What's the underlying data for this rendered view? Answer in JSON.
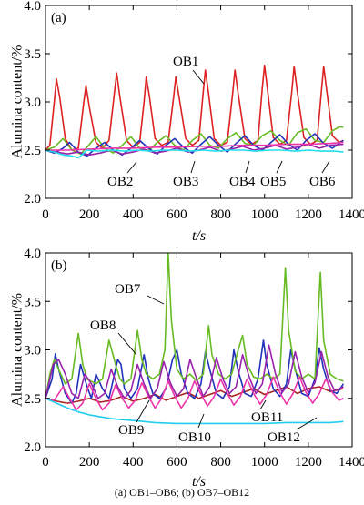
{
  "caption": "(a) OB1–OB6; (b) OB7–OB12",
  "chart_data": [
    {
      "type": "line",
      "panel_label": "(a)",
      "xlabel": "t/s",
      "ylabel": "Alumina content/%",
      "xlim": [
        0,
        1400
      ],
      "ylim": [
        2.0,
        4.0
      ],
      "xticks": [
        0,
        200,
        400,
        600,
        800,
        1000,
        1200,
        1400
      ],
      "yticks": [
        2.0,
        2.5,
        3.0,
        3.5,
        4.0
      ],
      "grid": false,
      "series": [
        {
          "name": "OB1",
          "color": "#dd2222",
          "x": [
            0,
            20,
            40,
            50,
            65,
            90,
            120,
            150,
            175,
            185,
            200,
            230,
            260,
            290,
            315,
            325,
            340,
            370,
            400,
            430,
            450,
            460,
            475,
            500,
            530,
            560,
            585,
            595,
            610,
            640,
            670,
            700,
            720,
            730,
            745,
            770,
            800,
            830,
            855,
            865,
            880,
            910,
            940,
            970,
            990,
            1000,
            1015,
            1040,
            1070,
            1100,
            1125,
            1135,
            1150,
            1180,
            1210,
            1240,
            1260,
            1270,
            1285,
            1310,
            1340,
            1360
          ],
          "y": [
            2.5,
            2.55,
            3.0,
            3.24,
            3.05,
            2.62,
            2.5,
            2.52,
            3.0,
            3.17,
            2.95,
            2.58,
            2.52,
            2.6,
            3.1,
            3.3,
            3.05,
            2.6,
            2.53,
            2.58,
            3.0,
            3.26,
            3.05,
            2.62,
            2.55,
            2.58,
            3.05,
            3.26,
            3.05,
            2.62,
            2.55,
            2.6,
            3.1,
            3.33,
            3.08,
            2.62,
            2.55,
            2.58,
            3.1,
            3.33,
            3.08,
            2.62,
            2.56,
            2.6,
            3.15,
            3.38,
            3.1,
            2.63,
            2.56,
            2.6,
            3.12,
            3.37,
            3.1,
            2.63,
            2.56,
            2.6,
            3.12,
            3.37,
            3.1,
            2.65,
            2.58,
            2.6
          ]
        },
        {
          "name": "OB2",
          "color": "#66bb22",
          "x": [
            0,
            40,
            80,
            120,
            160,
            190,
            230,
            270,
            310,
            350,
            390,
            430,
            470,
            510,
            550,
            590,
            630,
            670,
            710,
            750,
            790,
            830,
            870,
            910,
            950,
            990,
            1030,
            1070,
            1110,
            1150,
            1190,
            1230,
            1270,
            1310,
            1340,
            1360
          ],
          "y": [
            2.5,
            2.53,
            2.62,
            2.5,
            2.46,
            2.53,
            2.64,
            2.52,
            2.47,
            2.55,
            2.64,
            2.52,
            2.49,
            2.58,
            2.65,
            2.55,
            2.5,
            2.6,
            2.67,
            2.55,
            2.52,
            2.62,
            2.68,
            2.57,
            2.55,
            2.65,
            2.7,
            2.6,
            2.55,
            2.68,
            2.72,
            2.6,
            2.58,
            2.7,
            2.74,
            2.74
          ]
        },
        {
          "name": "OB3",
          "color": "#2233bb",
          "x": [
            0,
            40,
            80,
            110,
            150,
            190,
            230,
            270,
            310,
            350,
            390,
            430,
            470,
            510,
            550,
            590,
            630,
            670,
            710,
            750,
            790,
            830,
            870,
            910,
            950,
            990,
            1030,
            1070,
            1110,
            1150,
            1190,
            1230,
            1270,
            1310,
            1360
          ],
          "y": [
            2.5,
            2.47,
            2.52,
            2.58,
            2.48,
            2.44,
            2.52,
            2.58,
            2.5,
            2.45,
            2.52,
            2.6,
            2.52,
            2.46,
            2.55,
            2.62,
            2.53,
            2.47,
            2.56,
            2.64,
            2.55,
            2.48,
            2.57,
            2.65,
            2.55,
            2.5,
            2.58,
            2.66,
            2.56,
            2.5,
            2.6,
            2.67,
            2.57,
            2.52,
            2.6
          ]
        },
        {
          "name": "OB4",
          "color": "#9922aa",
          "x": [
            0,
            50,
            100,
            150,
            200,
            250,
            300,
            350,
            400,
            450,
            500,
            550,
            600,
            650,
            700,
            750,
            800,
            850,
            900,
            950,
            1000,
            1050,
            1100,
            1150,
            1200,
            1250,
            1300,
            1360
          ],
          "y": [
            2.5,
            2.48,
            2.46,
            2.48,
            2.45,
            2.47,
            2.5,
            2.46,
            2.48,
            2.51,
            2.47,
            2.49,
            2.52,
            2.48,
            2.5,
            2.53,
            2.49,
            2.51,
            2.54,
            2.5,
            2.52,
            2.55,
            2.51,
            2.53,
            2.56,
            2.52,
            2.55,
            2.56
          ]
        },
        {
          "name": "OB5",
          "color": "#ee33aa",
          "x": [
            0,
            100,
            200,
            300,
            400,
            500,
            600,
            700,
            800,
            900,
            1000,
            1100,
            1200,
            1300,
            1360
          ],
          "y": [
            2.5,
            2.5,
            2.51,
            2.52,
            2.52,
            2.53,
            2.53,
            2.54,
            2.54,
            2.55,
            2.55,
            2.56,
            2.56,
            2.57,
            2.58
          ]
        },
        {
          "name": "OB6",
          "color": "#22ddee",
          "x": [
            0,
            40,
            80,
            120,
            150,
            190,
            240,
            300,
            360,
            420,
            480,
            540,
            600,
            660,
            720,
            780,
            840,
            900,
            960,
            1020,
            1080,
            1140,
            1200,
            1260,
            1320,
            1360
          ],
          "y": [
            2.5,
            2.48,
            2.45,
            2.44,
            2.42,
            2.5,
            2.49,
            2.5,
            2.49,
            2.5,
            2.49,
            2.5,
            2.5,
            2.49,
            2.5,
            2.49,
            2.5,
            2.5,
            2.49,
            2.5,
            2.5,
            2.49,
            2.5,
            2.49,
            2.49,
            2.48
          ]
        }
      ],
      "annotations": [
        {
          "text": "OB1",
          "series": "OB1"
        },
        {
          "text": "OB2",
          "series": "OB2"
        },
        {
          "text": "OB3",
          "series": "OB3"
        },
        {
          "text": "OB4",
          "series": "OB4"
        },
        {
          "text": "OB5",
          "series": "OB5"
        },
        {
          "text": "OB6",
          "series": "OB6"
        }
      ]
    },
    {
      "type": "line",
      "panel_label": "(b)",
      "xlabel": "t/s",
      "ylabel": "Alumina content/%",
      "xlim": [
        0,
        1400
      ],
      "ylim": [
        2.0,
        4.0
      ],
      "xticks": [
        0,
        200,
        400,
        600,
        800,
        1000,
        1200,
        1400
      ],
      "yticks": [
        2.0,
        2.5,
        3.0,
        3.5,
        4.0
      ],
      "grid": false,
      "series": [
        {
          "name": "OB7",
          "color": "#aa2222",
          "x": [
            0,
            50,
            100,
            150,
            200,
            250,
            300,
            350,
            400,
            450,
            500,
            550,
            600,
            650,
            700,
            750,
            800,
            850,
            900,
            950,
            1000,
            1050,
            1100,
            1150,
            1200,
            1250,
            1300,
            1360
          ],
          "y": [
            2.5,
            2.47,
            2.45,
            2.47,
            2.5,
            2.46,
            2.48,
            2.52,
            2.47,
            2.5,
            2.54,
            2.48,
            2.52,
            2.56,
            2.5,
            2.54,
            2.58,
            2.52,
            2.56,
            2.6,
            2.54,
            2.58,
            2.62,
            2.55,
            2.6,
            2.62,
            2.57,
            2.6
          ]
        },
        {
          "name": "OB8",
          "color": "#2233bb",
          "x": [
            0,
            30,
            45,
            60,
            90,
            120,
            140,
            160,
            190,
            210,
            230,
            260,
            290,
            310,
            330,
            345,
            360,
            390,
            420,
            450,
            470,
            490,
            520,
            550,
            580,
            600,
            620,
            650,
            680,
            710,
            730,
            750,
            780,
            810,
            840,
            860,
            880,
            910,
            940,
            970,
            995,
            1010,
            1040,
            1070,
            1100,
            1120,
            1140,
            1170,
            1200,
            1230,
            1250,
            1270,
            1300,
            1330,
            1360
          ],
          "y": [
            2.5,
            2.7,
            2.96,
            2.8,
            2.55,
            2.45,
            2.55,
            2.85,
            2.62,
            2.5,
            2.75,
            2.6,
            2.5,
            2.7,
            2.9,
            2.85,
            2.6,
            2.5,
            2.6,
            2.95,
            2.7,
            2.55,
            2.5,
            2.6,
            2.9,
            3.0,
            2.75,
            2.55,
            2.5,
            2.65,
            2.98,
            2.8,
            2.55,
            2.5,
            2.62,
            3.0,
            2.78,
            2.55,
            2.52,
            2.7,
            3.1,
            2.85,
            2.6,
            2.52,
            2.65,
            3.0,
            2.8,
            2.55,
            2.52,
            2.7,
            3.02,
            2.8,
            2.58,
            2.55,
            2.65
          ]
        },
        {
          "name": "OB9",
          "color": "#66bb22",
          "x": [
            0,
            20,
            40,
            60,
            90,
            120,
            150,
            170,
            190,
            230,
            260,
            290,
            320,
            340,
            360,
            390,
            420,
            440,
            460,
            490,
            520,
            545,
            560,
            575,
            600,
            630,
            660,
            690,
            720,
            745,
            760,
            790,
            820,
            850,
            880,
            900,
            920,
            950,
            980,
            1010,
            1040,
            1070,
            1095,
            1110,
            1140,
            1170,
            1200,
            1230,
            1255,
            1270,
            1300,
            1330,
            1360
          ],
          "y": [
            2.5,
            2.75,
            2.9,
            2.8,
            2.65,
            2.7,
            3.17,
            2.85,
            2.7,
            2.65,
            2.7,
            3.1,
            2.85,
            2.7,
            2.65,
            2.7,
            3.2,
            2.9,
            2.75,
            2.7,
            2.75,
            3.0,
            4.0,
            3.3,
            2.8,
            2.7,
            2.75,
            2.68,
            2.75,
            3.25,
            2.95,
            2.75,
            2.7,
            2.75,
            3.0,
            3.15,
            2.85,
            2.72,
            2.7,
            2.75,
            2.7,
            2.75,
            3.85,
            3.2,
            2.78,
            2.7,
            2.75,
            2.7,
            3.8,
            3.1,
            2.75,
            2.7,
            2.68
          ]
        },
        {
          "name": "OB10",
          "color": "#ee33aa",
          "x": [
            0,
            40,
            80,
            110,
            140,
            170,
            200,
            230,
            260,
            290,
            320,
            350,
            380,
            410,
            440,
            470,
            500,
            530,
            560,
            590,
            620,
            650,
            680,
            710,
            740,
            770,
            800,
            830,
            860,
            890,
            920,
            950,
            980,
            1010,
            1040,
            1070,
            1100,
            1130,
            1160,
            1190,
            1220,
            1250,
            1280,
            1310,
            1340,
            1360
          ],
          "y": [
            2.5,
            2.48,
            2.62,
            2.5,
            2.38,
            2.45,
            2.65,
            2.5,
            2.38,
            2.45,
            2.64,
            2.5,
            2.4,
            2.48,
            2.66,
            2.52,
            2.4,
            2.5,
            2.68,
            2.52,
            2.4,
            2.5,
            2.68,
            2.54,
            2.42,
            2.52,
            2.7,
            2.55,
            2.43,
            2.52,
            2.7,
            2.55,
            2.44,
            2.54,
            2.72,
            2.56,
            2.44,
            2.55,
            2.72,
            2.56,
            2.45,
            2.55,
            2.7,
            2.56,
            2.48,
            2.5
          ]
        },
        {
          "name": "OB11",
          "color": "#9922aa",
          "x": [
            0,
            35,
            60,
            90,
            120,
            150,
            180,
            210,
            240,
            270,
            300,
            330,
            360,
            390,
            420,
            450,
            480,
            510,
            540,
            570,
            600,
            630,
            660,
            690,
            720,
            750,
            780,
            810,
            840,
            870,
            900,
            930,
            960,
            990,
            1020,
            1050,
            1080,
            1110,
            1140,
            1170,
            1200,
            1230,
            1260,
            1290,
            1320,
            1360
          ],
          "y": [
            2.5,
            2.85,
            2.9,
            2.75,
            2.55,
            2.5,
            2.75,
            2.65,
            2.5,
            2.55,
            2.8,
            2.62,
            2.5,
            2.58,
            2.85,
            2.65,
            2.5,
            2.6,
            2.88,
            2.66,
            2.52,
            2.6,
            2.9,
            2.7,
            2.52,
            2.62,
            2.92,
            2.7,
            2.55,
            2.62,
            2.95,
            2.72,
            2.55,
            2.65,
            3.05,
            2.75,
            2.56,
            2.65,
            2.98,
            2.72,
            2.56,
            2.66,
            2.98,
            2.72,
            2.58,
            2.62
          ]
        },
        {
          "name": "OB12",
          "color": "#22ccee",
          "x": [
            0,
            50,
            100,
            150,
            200,
            300,
            400,
            500,
            600,
            700,
            800,
            900,
            1000,
            1100,
            1200,
            1300,
            1360
          ],
          "y": [
            2.5,
            2.45,
            2.4,
            2.36,
            2.33,
            2.29,
            2.27,
            2.25,
            2.24,
            2.24,
            2.24,
            2.24,
            2.24,
            2.25,
            2.25,
            2.25,
            2.26
          ]
        }
      ],
      "annotations": [
        {
          "text": "OB7",
          "series": "OB7"
        },
        {
          "text": "OB8",
          "series": "OB8"
        },
        {
          "text": "OB9",
          "series": "OB9"
        },
        {
          "text": "OB10",
          "series": "OB10"
        },
        {
          "text": "OB11",
          "series": "OB11"
        },
        {
          "text": "OB12",
          "series": "OB12"
        }
      ]
    }
  ]
}
